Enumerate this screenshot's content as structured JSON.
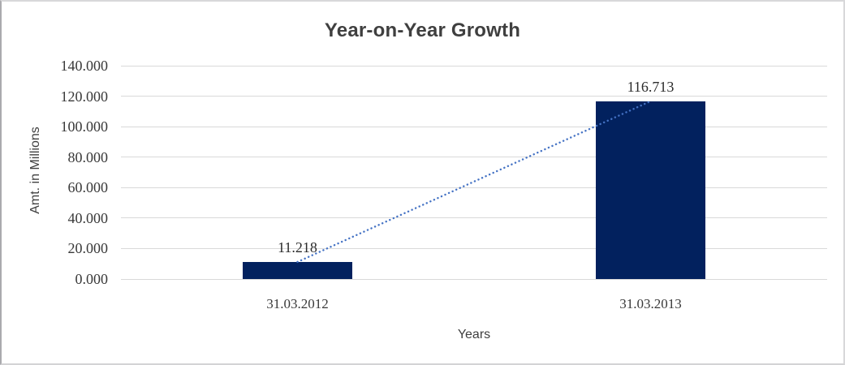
{
  "chart_data": {
    "type": "bar",
    "title": "Year-on-Year Growth",
    "xlabel": "Years",
    "ylabel": "Amt. in Millions",
    "categories": [
      "31.03.2012",
      "31.03.2013"
    ],
    "values": [
      11.218,
      116.713
    ],
    "data_labels": [
      "11.218",
      "116.713"
    ],
    "ylim": [
      0,
      140
    ],
    "ytick_step": 20,
    "ytick_labels": [
      "0.000",
      "20.000",
      "40.000",
      "60.000",
      "80.000",
      "100.000",
      "120.000",
      "140.000"
    ],
    "grid": true,
    "legend": false,
    "trendline": {
      "style": "dotted",
      "connects": [
        "31.03.2012",
        "31.03.2013"
      ]
    },
    "colors": {
      "bar_fill": "#02215e",
      "gridline": "#d9d9d9",
      "title_text": "#3f3f3f",
      "axis_title_text": "#3f3f3f",
      "tick_text": "#393939",
      "data_label_text": "#2b2b2b",
      "trendline": "#4472c4"
    }
  }
}
